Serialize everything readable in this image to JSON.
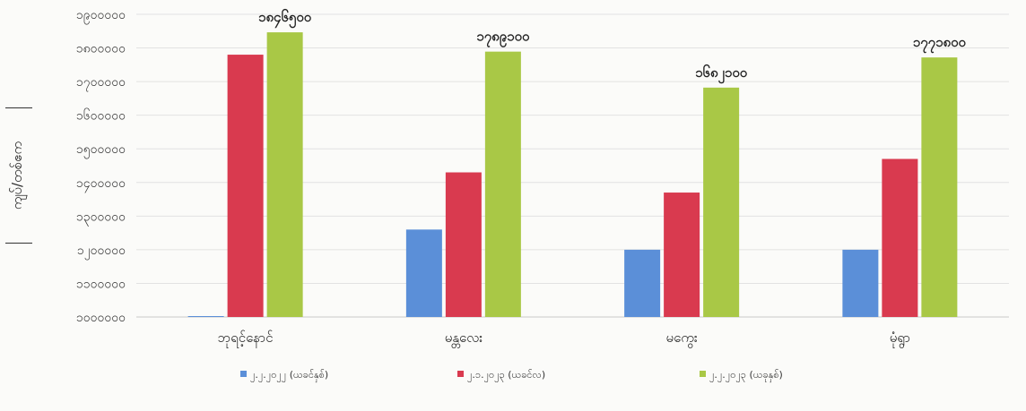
{
  "chart_data": {
    "type": "bar",
    "ylabel": "ကျပ်/တစ်ဧက",
    "categories": [
      "ဘုရင့်နောင်",
      "မန္တလေး",
      "မကွေး",
      "မုံရွာ"
    ],
    "series": [
      {
        "name": "၂.၂.၂၀၂၂ (ယခင်နှစ်)",
        "color": "#5b8fd8",
        "values": [
          1000000,
          1260000,
          1200000,
          1200000
        ]
      },
      {
        "name": "၂.၁.၂၀၂၃ (ယခင်လ)",
        "color": "#d93a4f",
        "values": [
          1780000,
          1430000,
          1370000,
          1470000
        ]
      },
      {
        "name": "၂.၂.၂၀၂၃ (ယခုနှစ်)",
        "color": "#a9c846",
        "values": [
          1846500,
          1789100,
          1682100,
          1771800
        ]
      }
    ],
    "data_labels": [
      {
        "category_index": 0,
        "series_index": 2,
        "text": "၁၈၄၆၅၀၀"
      },
      {
        "category_index": 1,
        "series_index": 2,
        "text": "၁၇၈၉၁၀၀"
      },
      {
        "category_index": 2,
        "series_index": 2,
        "text": "၁၆၈၂၁၀၀"
      },
      {
        "category_index": 3,
        "series_index": 2,
        "text": "၁၇၇၁၈၀၀"
      }
    ],
    "y_ticks": [
      {
        "value": 1000000,
        "label": "၁၀၀၀၀၀၀"
      },
      {
        "value": 1100000,
        "label": "၁၁၀၀၀၀၀"
      },
      {
        "value": 1200000,
        "label": "၁၂၀၀၀၀၀"
      },
      {
        "value": 1300000,
        "label": "၁၃၀၀၀၀၀"
      },
      {
        "value": 1400000,
        "label": "၁၄၀၀၀၀၀"
      },
      {
        "value": 1500000,
        "label": "၁၅၀၀၀၀၀"
      },
      {
        "value": 1600000,
        "label": "၁၆၀၀၀၀၀"
      },
      {
        "value": 1700000,
        "label": "၁၇၀၀၀၀၀"
      },
      {
        "value": 1800000,
        "label": "၁၈၀၀၀၀၀"
      },
      {
        "value": 1900000,
        "label": "၁၉၀၀၀၀၀"
      }
    ],
    "ylim": [
      1000000,
      1900000
    ],
    "grid": true,
    "legend": "bottom"
  }
}
